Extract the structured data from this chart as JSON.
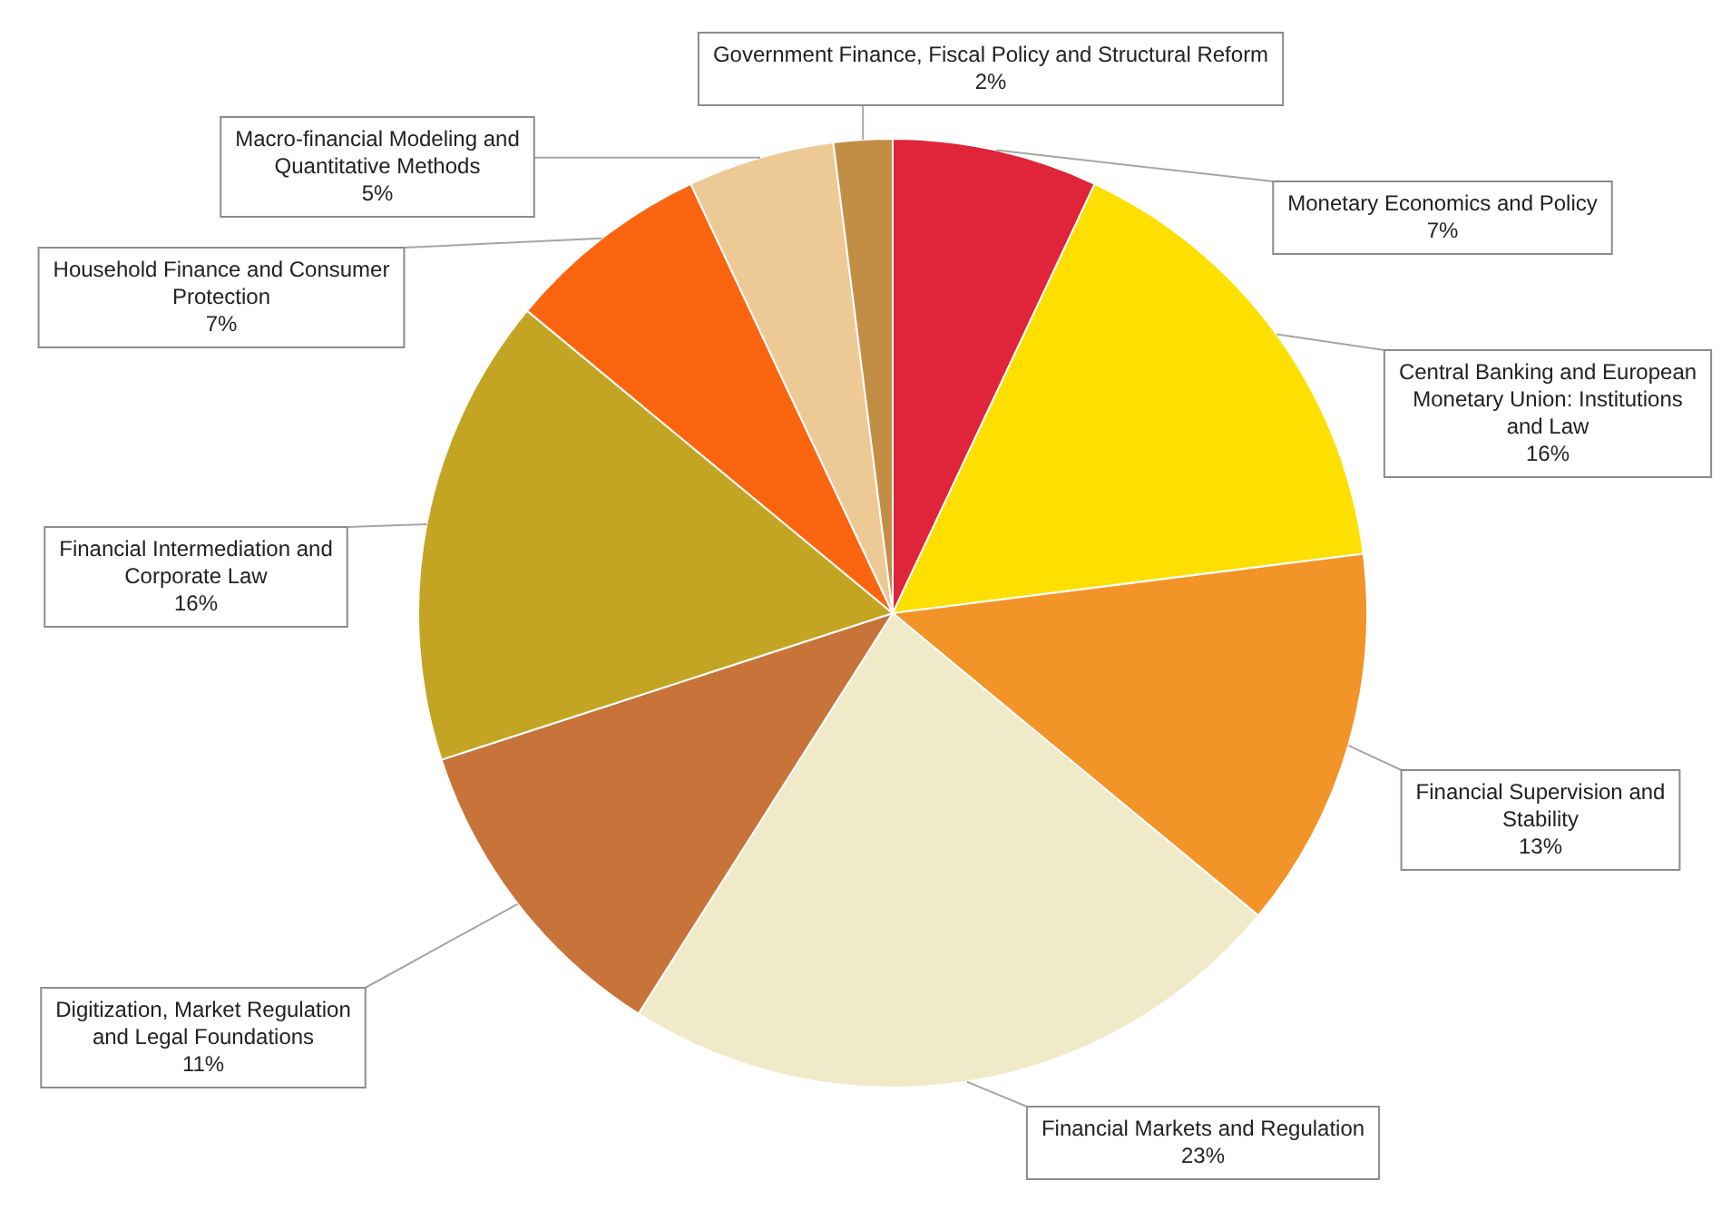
{
  "chart_data": {
    "type": "pie",
    "categories": [
      "Monetary Economics and Policy",
      "Central Banking and European Monetary Union: Institutions and Law",
      "Financial Supervision and Stability",
      "Financial Markets and Regulation",
      "Digitization, Market Regulation and Legal Foundations",
      "Financial Intermediation and Corporate Law",
      "Household Finance and Consumer Protection",
      "Macro-financial Modeling and Quantitative Methods",
      "Government Finance, Fiscal Policy and Structural Reform"
    ],
    "values": [
      7,
      16,
      13,
      23,
      11,
      16,
      7,
      5,
      2
    ],
    "value_labels": [
      "7%",
      "16%",
      "13%",
      "23%",
      "11%",
      "16%",
      "7%",
      "5%",
      "2%"
    ],
    "colors": [
      "#e0253a",
      "#fde000",
      "#f39429",
      "#f0eac8",
      "#c8733a",
      "#c4a523",
      "#fc6510",
      "#edc995",
      "#c28e45"
    ],
    "legend": false
  }
}
